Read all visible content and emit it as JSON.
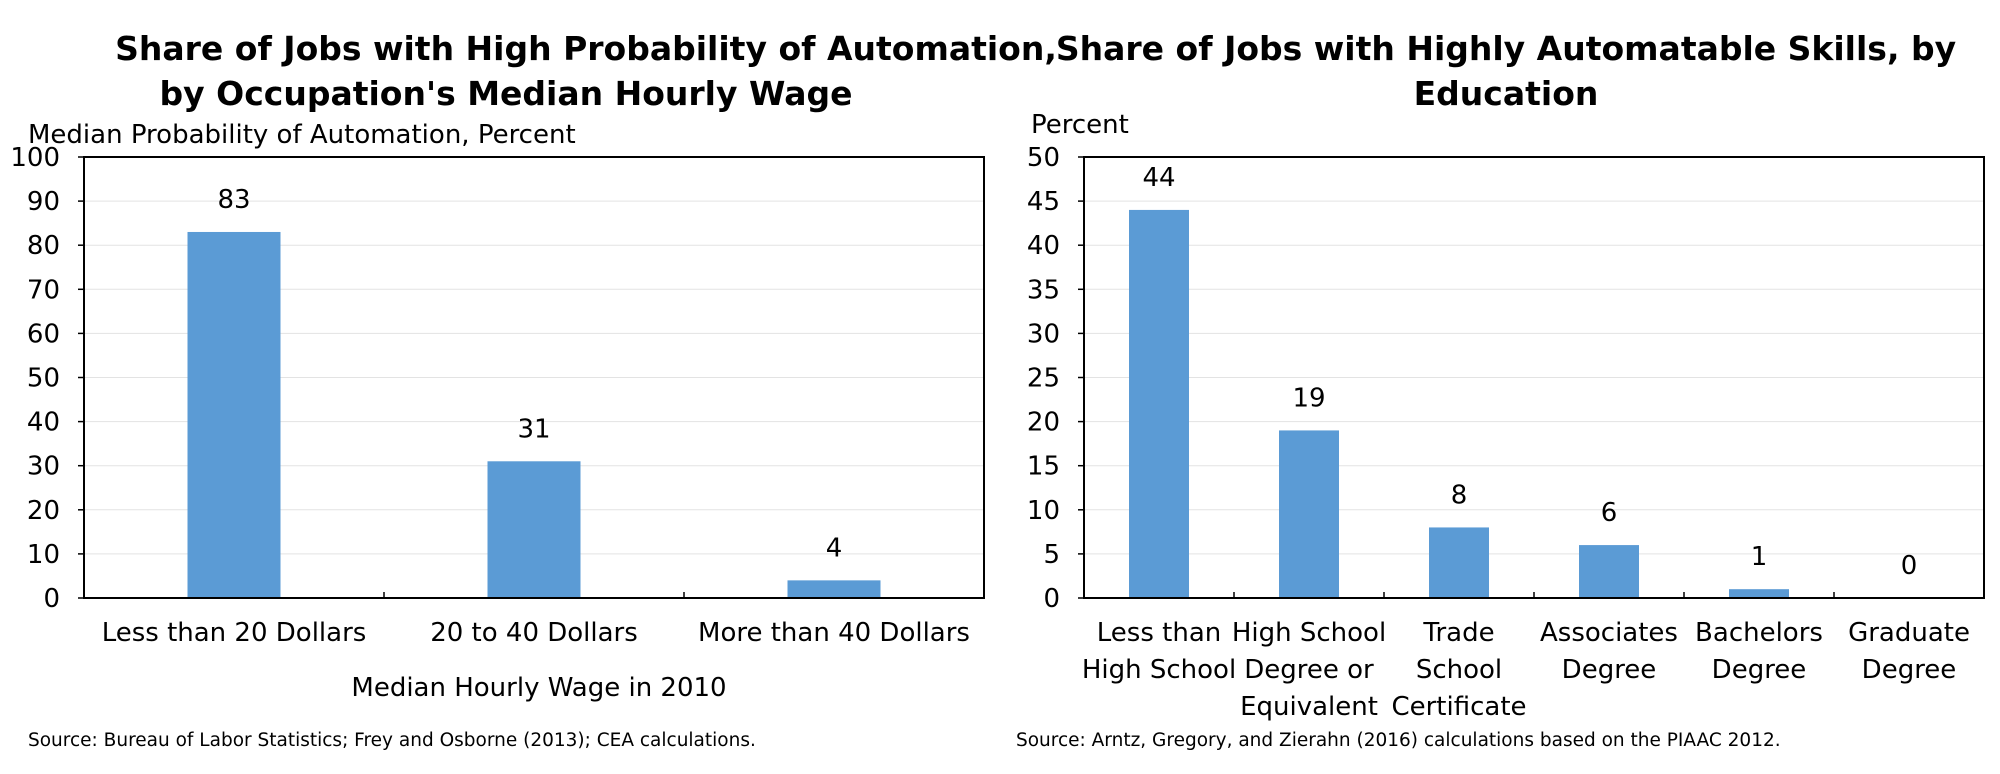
{
  "chart_data": [
    {
      "type": "bar",
      "title": [
        "Share of Jobs with High Probability of Automation,",
        "by Occupation's Median Hourly Wage"
      ],
      "ylabel": "Median Probability of Automation, Percent",
      "xlabel": "Median Hourly Wage in 2010",
      "ylim": [
        0,
        100
      ],
      "yticks": [
        0,
        10,
        20,
        30,
        40,
        50,
        60,
        70,
        80,
        90,
        100
      ],
      "categories": [
        [
          "Less than 20 Dollars"
        ],
        [
          "20 to 40 Dollars"
        ],
        [
          "More than 40 Dollars"
        ]
      ],
      "values": [
        83,
        31,
        4
      ],
      "source": "Source: Bureau of Labor Statistics; Frey and Osborne (2013); CEA calculations.",
      "grid": true,
      "bar_color": "#5b9bd5"
    },
    {
      "type": "bar",
      "title": [
        "Share of Jobs with Highly Automatable Skills, by",
        "Education"
      ],
      "ylabel": "Percent",
      "xlabel": "",
      "ylim": [
        0,
        50
      ],
      "yticks": [
        0,
        5,
        10,
        15,
        20,
        25,
        30,
        35,
        40,
        45,
        50
      ],
      "categories": [
        [
          "Less than",
          "High School"
        ],
        [
          "High School",
          "Degree or",
          "Equivalent"
        ],
        [
          "Trade",
          "School",
          "Certificate"
        ],
        [
          "Associates",
          "Degree"
        ],
        [
          "Bachelors",
          "Degree"
        ],
        [
          "Graduate",
          "Degree"
        ]
      ],
      "values": [
        44,
        19,
        8,
        6,
        1,
        0
      ],
      "source": "Source: Arntz, Gregory, and Zierahn (2016) calculations based on the PIAAC 2012.",
      "grid": true,
      "bar_color": "#5b9bd5"
    }
  ]
}
